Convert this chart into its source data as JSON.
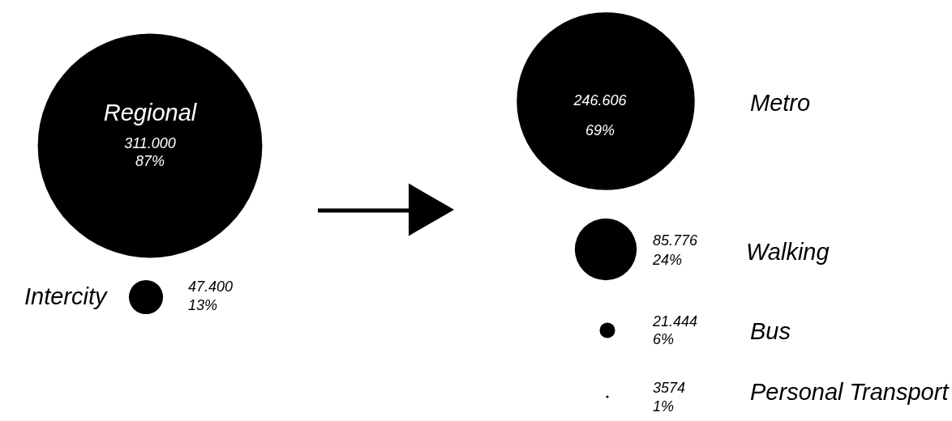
{
  "chart_data": [
    {
      "type": "other",
      "categories": [
        "Regional",
        "Intercity"
      ],
      "series": [
        {
          "values": [
            311000,
            47400
          ],
          "value_labels": [
            "311.000",
            "47.400"
          ],
          "color": "#000000"
        },
        {
          "values": [
            87,
            13
          ],
          "value_labels": [
            "87%",
            "13%"
          ]
        }
      ]
    },
    {
      "type": "other",
      "categories": [
        "Metro",
        "Walking",
        "Bus",
        "Personal Transport"
      ],
      "series": [
        {
          "values": [
            246606,
            85776,
            21444,
            3574
          ],
          "value_labels": [
            "246.606",
            "85.776",
            "21.444",
            "3574"
          ],
          "color": "#000000"
        },
        {
          "values": [
            69,
            24,
            6,
            1
          ],
          "value_labels": [
            "69%",
            "24%",
            "6%",
            "1%"
          ]
        }
      ]
    }
  ]
}
